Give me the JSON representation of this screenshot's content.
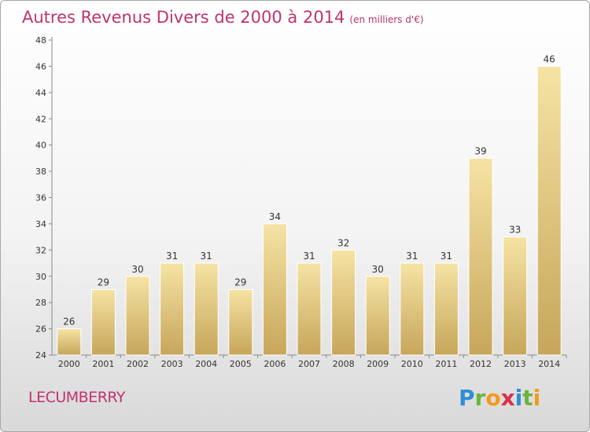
{
  "header": {
    "title": "Autres Revenus Divers de 2000 à 2014",
    "subtitle": "(en milliers d'€)"
  },
  "footer": {
    "town": "LECUMBERRY",
    "logo": "Proxiti",
    "logo_letters": [
      "P",
      "r",
      "o",
      "x",
      "i",
      "t",
      "i"
    ]
  },
  "colors": {
    "title": "#c0336d",
    "bar_light": "#f5e0a0",
    "bar_dark": "#c8a85c"
  },
  "chart_data": {
    "type": "bar",
    "categories": [
      "2000",
      "2001",
      "2002",
      "2003",
      "2004",
      "2005",
      "2006",
      "2007",
      "2008",
      "2009",
      "2010",
      "2011",
      "2012",
      "2013",
      "2014"
    ],
    "values": [
      26,
      29,
      30,
      31,
      31,
      29,
      34,
      31,
      32,
      30,
      31,
      31,
      39,
      33,
      46
    ],
    "ylim": [
      24,
      48
    ],
    "yticks": [
      24,
      26,
      28,
      30,
      32,
      34,
      36,
      38,
      40,
      42,
      44,
      46,
      48
    ],
    "grid": false,
    "show_value_labels": true
  }
}
